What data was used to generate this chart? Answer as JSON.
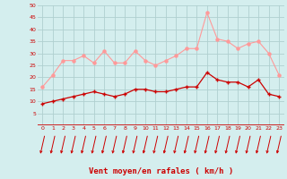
{
  "hours": [
    0,
    1,
    2,
    3,
    4,
    5,
    6,
    7,
    8,
    9,
    10,
    11,
    12,
    13,
    14,
    15,
    16,
    17,
    18,
    19,
    20,
    21,
    22,
    23
  ],
  "vent_moyen": [
    9,
    10,
    11,
    12,
    13,
    14,
    13,
    12,
    13,
    15,
    15,
    14,
    14,
    15,
    16,
    16,
    22,
    19,
    18,
    18,
    16,
    19,
    13,
    12
  ],
  "vent_rafales": [
    16,
    21,
    27,
    27,
    29,
    26,
    31,
    26,
    26,
    31,
    27,
    25,
    27,
    29,
    32,
    32,
    47,
    36,
    35,
    32,
    34,
    35,
    30,
    21
  ],
  "bg_color": "#d4eeee",
  "grid_color": "#b0d0d0",
  "line_moyen_color": "#cc0000",
  "line_rafales_color": "#ff9999",
  "xlabel": "Vent moyen/en rafales ( km/h )",
  "ylim": [
    0,
    50
  ],
  "yticks": [
    5,
    10,
    15,
    20,
    25,
    30,
    35,
    40,
    45,
    50
  ],
  "xticks": [
    0,
    1,
    2,
    3,
    4,
    5,
    6,
    7,
    8,
    9,
    10,
    11,
    12,
    13,
    14,
    15,
    16,
    17,
    18,
    19,
    20,
    21,
    22,
    23
  ],
  "arrow_color": "#cc0000",
  "axis_line_color": "#cc0000"
}
